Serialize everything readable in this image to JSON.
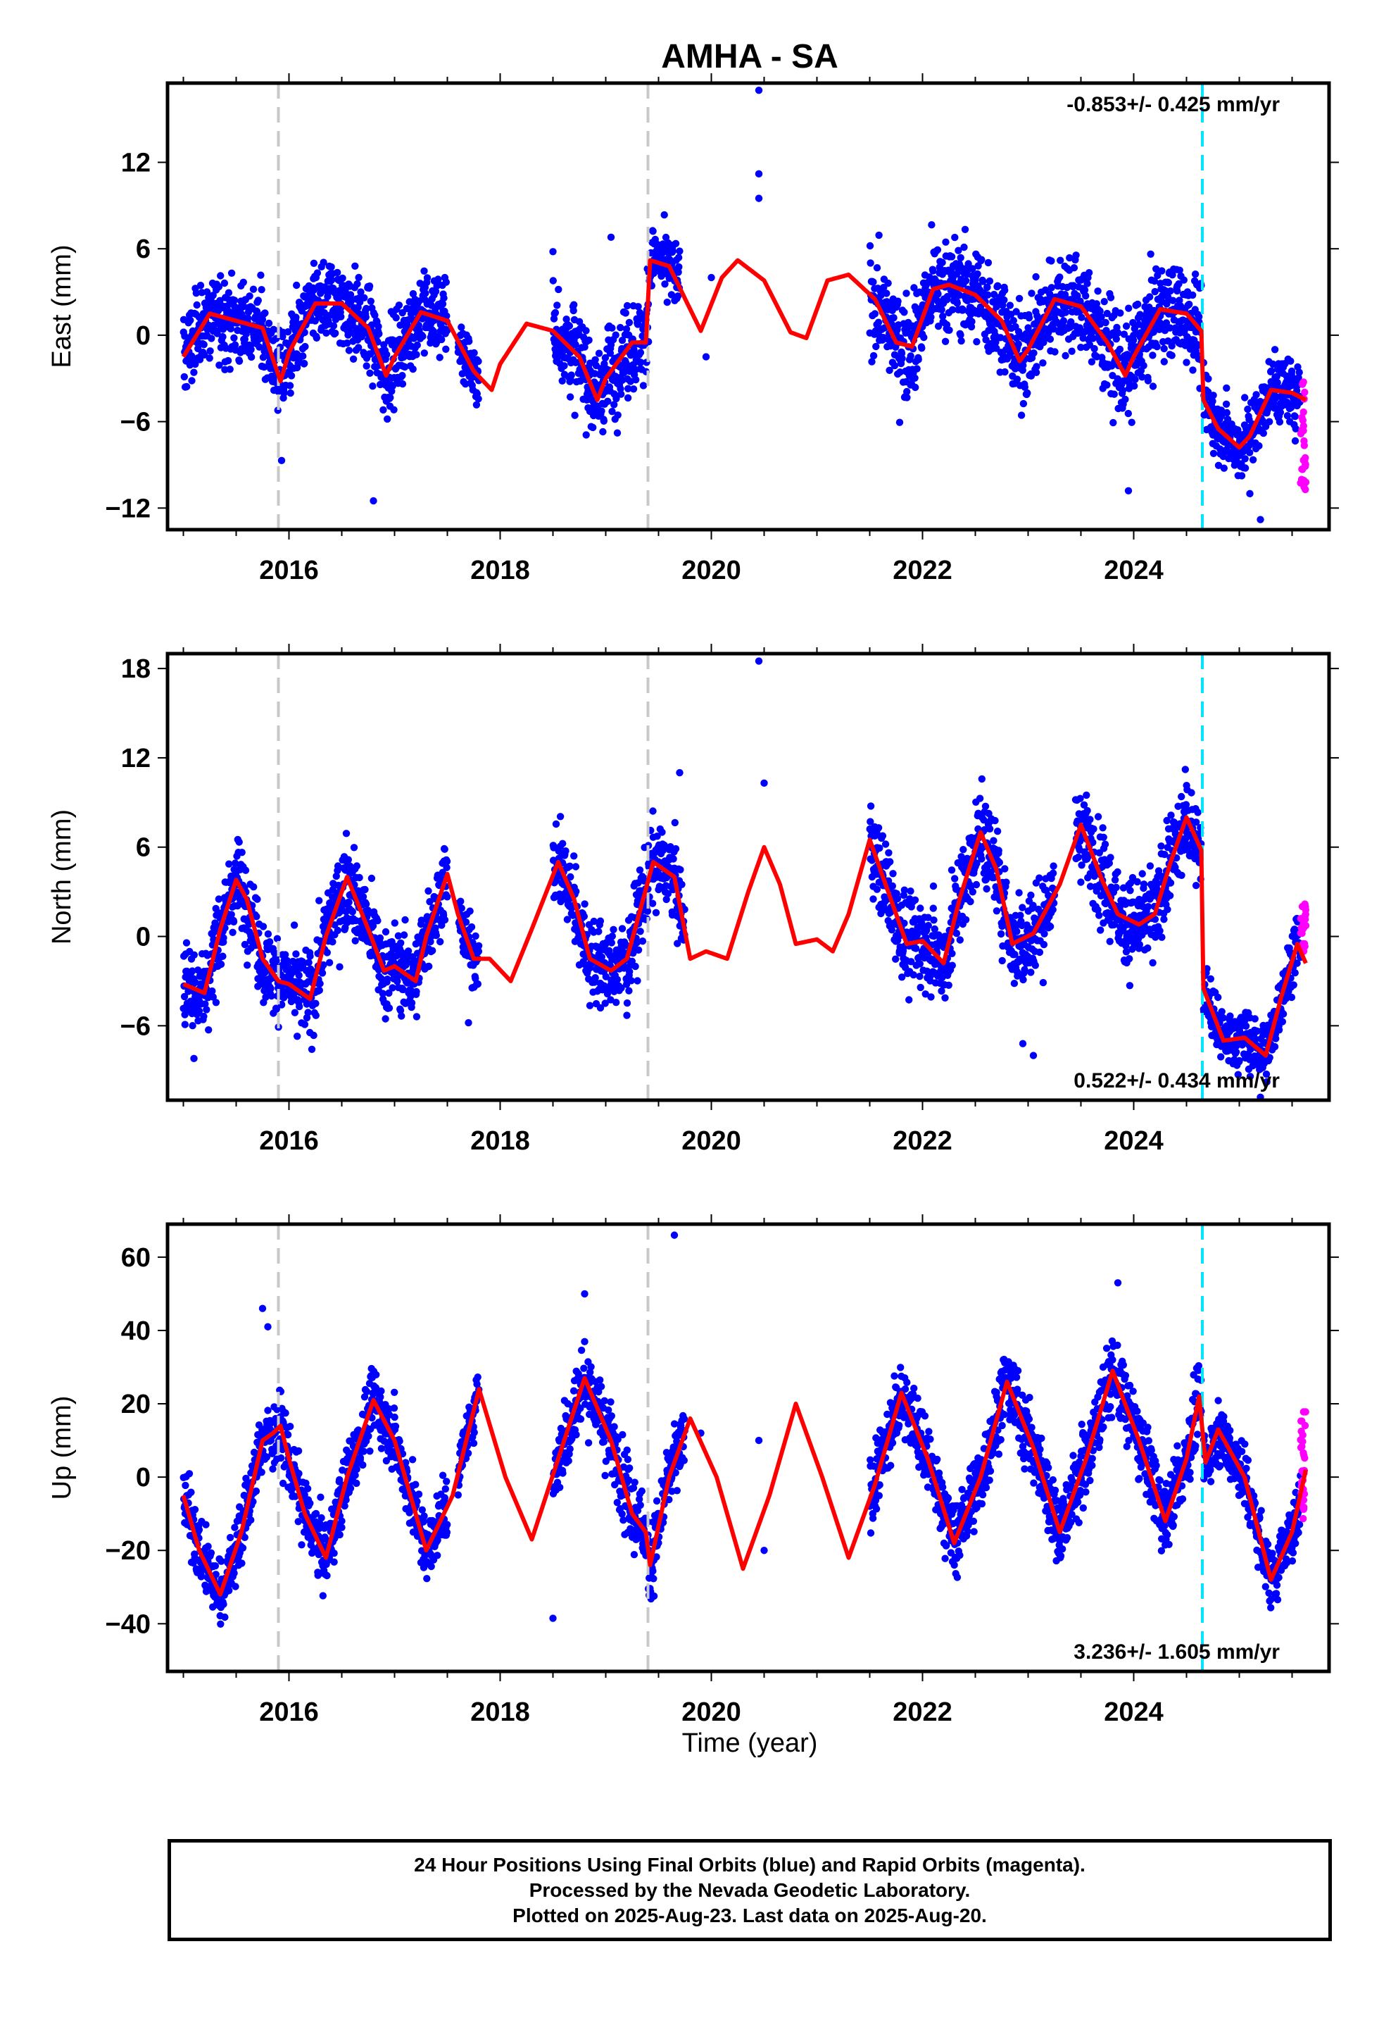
{
  "title": "AMHA - SA",
  "xlabel": "Time (year)",
  "colors": {
    "final_orbits": "#0000ff",
    "rapid_orbits": "#ff00ff",
    "model": "#ff0000",
    "event_gray": "#c8c8c8",
    "event_cyan": "#00e5ff"
  },
  "caption": {
    "line1": "24 Hour Positions Using Final Orbits (blue) and Rapid Orbits (magenta).",
    "line2": "Processed by the Nevada Geodetic Laboratory.",
    "line3": "Plotted on 2025-Aug-23. Last data on 2025-Aug-20."
  },
  "chart_data": [
    {
      "type": "scatter",
      "panel": "east",
      "ylabel": "East (mm)",
      "rate_label": "-0.853+/- 0.425 mm/yr",
      "rate_position": "top-right",
      "xlim": [
        2014.85,
        2025.85
      ],
      "ylim": [
        -13.5,
        17.5
      ],
      "yticks": [
        12,
        6,
        0,
        -6,
        -12
      ],
      "xticks": [
        2016,
        2018,
        2020,
        2022,
        2024
      ],
      "events": [
        {
          "x": 2015.9,
          "color": "gray"
        },
        {
          "x": 2019.4,
          "color": "gray"
        },
        {
          "x": 2024.65,
          "color": "cyan"
        }
      ],
      "model_curve": {
        "x": [
          2015.0,
          2015.25,
          2015.5,
          2015.75,
          2015.92,
          2016.0,
          2016.25,
          2016.5,
          2016.75,
          2016.92,
          2017.0,
          2017.25,
          2017.5,
          2017.75,
          2017.92,
          2018.0,
          2018.25,
          2018.5,
          2018.75,
          2018.92,
          2019.0,
          2019.25,
          2019.38,
          2019.42,
          2019.6,
          2019.9,
          2020.1,
          2020.25,
          2020.5,
          2020.75,
          2020.9,
          2021.1,
          2021.3,
          2021.55,
          2021.75,
          2021.9,
          2022.1,
          2022.25,
          2022.5,
          2022.75,
          2022.92,
          2023.0,
          2023.25,
          2023.5,
          2023.75,
          2023.92,
          2024.0,
          2024.25,
          2024.5,
          2024.64,
          2024.66,
          2024.8,
          2025.0,
          2025.1,
          2025.3,
          2025.5,
          2025.63
        ],
        "y": [
          -1.5,
          1.5,
          1.0,
          0.5,
          -3.2,
          -1.2,
          2.2,
          2.2,
          0.5,
          -2.8,
          -1.5,
          1.6,
          1.0,
          -2.5,
          -3.8,
          -2.0,
          0.8,
          0.3,
          -1.5,
          -4.5,
          -3.0,
          -0.5,
          -0.5,
          5.2,
          4.8,
          0.3,
          4.0,
          5.2,
          3.8,
          0.2,
          -0.2,
          3.8,
          4.2,
          2.5,
          -0.5,
          -0.8,
          3.2,
          3.5,
          2.8,
          1.0,
          -1.8,
          -1.0,
          2.5,
          2.0,
          -0.5,
          -2.8,
          -1.5,
          1.8,
          1.5,
          0.3,
          -4.5,
          -6.5,
          -7.8,
          -7.0,
          -3.8,
          -4.0,
          -4.5
        ]
      },
      "final_orbit_segments": [
        {
          "x_start": 2015.0,
          "x_end": 2017.5,
          "spread": 2.2
        },
        {
          "x_start": 2017.6,
          "x_end": 2017.8,
          "spread": 1.5
        },
        {
          "x_start": 2018.5,
          "x_end": 2019.45,
          "spread": 2.5
        },
        {
          "x_start": 2019.45,
          "x_end": 2019.7,
          "spread": 1.8
        },
        {
          "x_start": 2021.5,
          "x_end": 2024.64,
          "spread": 2.6
        },
        {
          "x_start": 2024.66,
          "x_end": 2025.58,
          "spread": 1.8
        }
      ],
      "rapid_orbits": {
        "x_start": 2025.58,
        "x_end": 2025.63,
        "y_min": -11.0,
        "y_max": -3.0
      },
      "outliers": [
        {
          "x": 2020.45,
          "y": 17.0
        },
        {
          "x": 2020.45,
          "y": 11.2
        },
        {
          "x": 2020.45,
          "y": 9.5
        },
        {
          "x": 2018.5,
          "y": 5.8
        },
        {
          "x": 2016.8,
          "y": -11.5
        },
        {
          "x": 2015.93,
          "y": -8.7
        },
        {
          "x": 2019.95,
          "y": -1.5
        },
        {
          "x": 2020.0,
          "y": 4.0
        },
        {
          "x": 2019.05,
          "y": 6.8
        },
        {
          "x": 2023.95,
          "y": -10.8
        },
        {
          "x": 2025.2,
          "y": -12.8
        },
        {
          "x": 2025.1,
          "y": -11.0
        }
      ]
    },
    {
      "type": "scatter",
      "panel": "north",
      "ylabel": "North (mm)",
      "rate_label": "0.522+/- 0.434 mm/yr",
      "rate_position": "bottom-right",
      "xlim": [
        2014.85,
        2025.85
      ],
      "ylim": [
        -11.0,
        19.0
      ],
      "yticks": [
        18,
        12,
        6,
        0,
        -6
      ],
      "xticks": [
        2016,
        2018,
        2020,
        2022,
        2024
      ],
      "events": [
        {
          "x": 2015.9,
          "color": "gray"
        },
        {
          "x": 2019.4,
          "color": "gray"
        },
        {
          "x": 2024.65,
          "color": "cyan"
        }
      ],
      "model_curve": {
        "x": [
          2015.0,
          2015.2,
          2015.35,
          2015.5,
          2015.6,
          2015.75,
          2015.9,
          2016.0,
          2016.2,
          2016.35,
          2016.55,
          2016.75,
          2016.9,
          2017.0,
          2017.2,
          2017.3,
          2017.5,
          2017.6,
          2017.75,
          2017.9,
          2018.1,
          2018.3,
          2018.55,
          2018.7,
          2018.85,
          2019.05,
          2019.2,
          2019.45,
          2019.65,
          2019.8,
          2019.95,
          2020.15,
          2020.35,
          2020.5,
          2020.65,
          2020.8,
          2021.0,
          2021.15,
          2021.3,
          2021.5,
          2021.7,
          2021.85,
          2022.0,
          2022.2,
          2022.35,
          2022.55,
          2022.7,
          2022.85,
          2023.05,
          2023.3,
          2023.5,
          2023.7,
          2023.85,
          2024.05,
          2024.2,
          2024.35,
          2024.5,
          2024.64,
          2024.66,
          2024.85,
          2025.05,
          2025.25,
          2025.4,
          2025.55,
          2025.63
        ],
        "y": [
          -3.2,
          -3.8,
          0.5,
          3.8,
          2.5,
          -1.5,
          -3.0,
          -3.2,
          -4.2,
          0.0,
          4.0,
          0.5,
          -2.3,
          -2.0,
          -3.0,
          0.0,
          4.2,
          1.5,
          -1.5,
          -1.5,
          -3.0,
          0.5,
          5.0,
          2.5,
          -1.5,
          -2.3,
          -1.5,
          5.0,
          4.0,
          -1.5,
          -1.0,
          -1.5,
          3.0,
          6.0,
          3.5,
          -0.5,
          -0.2,
          -1.0,
          1.5,
          6.5,
          2.5,
          -0.5,
          -0.3,
          -1.8,
          2.5,
          7.0,
          4.5,
          -0.5,
          0.2,
          3.5,
          7.5,
          3.8,
          1.5,
          0.8,
          1.5,
          5.0,
          8.0,
          5.8,
          -3.5,
          -7.0,
          -6.8,
          -8.0,
          -4.0,
          -0.5,
          -1.8
        ]
      },
      "final_orbit_segments": [
        {
          "x_start": 2015.0,
          "x_end": 2017.5,
          "spread": 2.2
        },
        {
          "x_start": 2017.6,
          "x_end": 2017.8,
          "spread": 1.5
        },
        {
          "x_start": 2018.5,
          "x_end": 2019.45,
          "spread": 2.2
        },
        {
          "x_start": 2019.45,
          "x_end": 2019.75,
          "spread": 2.0
        },
        {
          "x_start": 2021.5,
          "x_end": 2023.25,
          "spread": 2.4
        },
        {
          "x_start": 2023.45,
          "x_end": 2024.64,
          "spread": 2.3
        },
        {
          "x_start": 2024.66,
          "x_end": 2025.58,
          "spread": 1.5
        }
      ],
      "rapid_orbits": {
        "x_start": 2025.58,
        "x_end": 2025.63,
        "y_min": -1.0,
        "y_max": 2.2
      },
      "outliers": [
        {
          "x": 2020.45,
          "y": 18.5
        },
        {
          "x": 2020.5,
          "y": 10.3
        },
        {
          "x": 2019.7,
          "y": 11.0
        },
        {
          "x": 2015.1,
          "y": -8.2
        },
        {
          "x": 2017.7,
          "y": -5.8
        },
        {
          "x": 2019.2,
          "y": -5.3
        },
        {
          "x": 2018.95,
          "y": -4.8
        },
        {
          "x": 2023.05,
          "y": -8.0
        },
        {
          "x": 2022.95,
          "y": -7.2
        },
        {
          "x": 2025.2,
          "y": -10.8
        }
      ]
    },
    {
      "type": "scatter",
      "panel": "up",
      "ylabel": "Up (mm)",
      "rate_label": "3.236+/- 1.605 mm/yr",
      "rate_position": "bottom-right",
      "xlim": [
        2014.85,
        2025.85
      ],
      "ylim": [
        -53.0,
        69.0
      ],
      "yticks": [
        60,
        40,
        20,
        0,
        -20,
        -40
      ],
      "xticks": [
        2016,
        2018,
        2020,
        2022,
        2024
      ],
      "events": [
        {
          "x": 2015.9,
          "color": "gray"
        },
        {
          "x": 2019.4,
          "color": "gray"
        },
        {
          "x": 2024.65,
          "color": "cyan"
        }
      ],
      "model_curve": {
        "x": [
          2015.0,
          2015.15,
          2015.35,
          2015.55,
          2015.75,
          2015.85,
          2015.92,
          2016.0,
          2016.15,
          2016.35,
          2016.55,
          2016.8,
          2017.0,
          2017.3,
          2017.55,
          2017.8,
          2018.05,
          2018.3,
          2018.55,
          2018.8,
          2019.05,
          2019.25,
          2019.38,
          2019.42,
          2019.6,
          2019.8,
          2020.05,
          2020.3,
          2020.55,
          2020.8,
          2021.05,
          2021.3,
          2021.55,
          2021.8,
          2022.05,
          2022.3,
          2022.55,
          2022.8,
          2023.05,
          2023.3,
          2023.55,
          2023.8,
          2024.05,
          2024.3,
          2024.5,
          2024.62,
          2024.68,
          2024.8,
          2025.05,
          2025.3,
          2025.5,
          2025.63
        ],
        "y": [
          -5.0,
          -20.0,
          -32.0,
          -15.0,
          10.0,
          12.0,
          14.0,
          5.0,
          -10.0,
          -22.0,
          0.0,
          21.0,
          10.0,
          -20.0,
          -5.0,
          24.0,
          0.0,
          -17.0,
          5.0,
          27.0,
          10.0,
          -10.0,
          -15.0,
          -24.0,
          0.0,
          16.0,
          0.0,
          -25.0,
          -5.0,
          20.0,
          0.0,
          -22.0,
          -2.0,
          23.0,
          5.0,
          -18.0,
          0.0,
          26.0,
          8.0,
          -15.0,
          5.0,
          29.0,
          10.0,
          -12.0,
          5.0,
          22.0,
          4.0,
          13.0,
          0.0,
          -28.0,
          -15.0,
          2.0
        ]
      },
      "final_orbit_segments": [
        {
          "x_start": 2015.0,
          "x_end": 2017.5,
          "spread": 7.0
        },
        {
          "x_start": 2017.6,
          "x_end": 2017.8,
          "spread": 5.0
        },
        {
          "x_start": 2018.5,
          "x_end": 2019.45,
          "spread": 8.0
        },
        {
          "x_start": 2019.45,
          "x_end": 2019.75,
          "spread": 7.0
        },
        {
          "x_start": 2021.5,
          "x_end": 2024.64,
          "spread": 7.5
        },
        {
          "x_start": 2024.66,
          "x_end": 2025.58,
          "spread": 6.5
        }
      ],
      "rapid_orbits": {
        "x_start": 2025.58,
        "x_end": 2025.63,
        "y_min": -12.0,
        "y_max": 21.0
      },
      "outliers": [
        {
          "x": 2019.65,
          "y": 66.0
        },
        {
          "x": 2015.75,
          "y": 46.0
        },
        {
          "x": 2015.8,
          "y": 41.0
        },
        {
          "x": 2018.8,
          "y": 50.0
        },
        {
          "x": 2023.85,
          "y": 53.0
        },
        {
          "x": 2018.5,
          "y": -38.5
        },
        {
          "x": 2020.45,
          "y": 10.0
        },
        {
          "x": 2020.5,
          "y": -20.0
        },
        {
          "x": 2019.9,
          "y": 12.0
        }
      ]
    }
  ]
}
